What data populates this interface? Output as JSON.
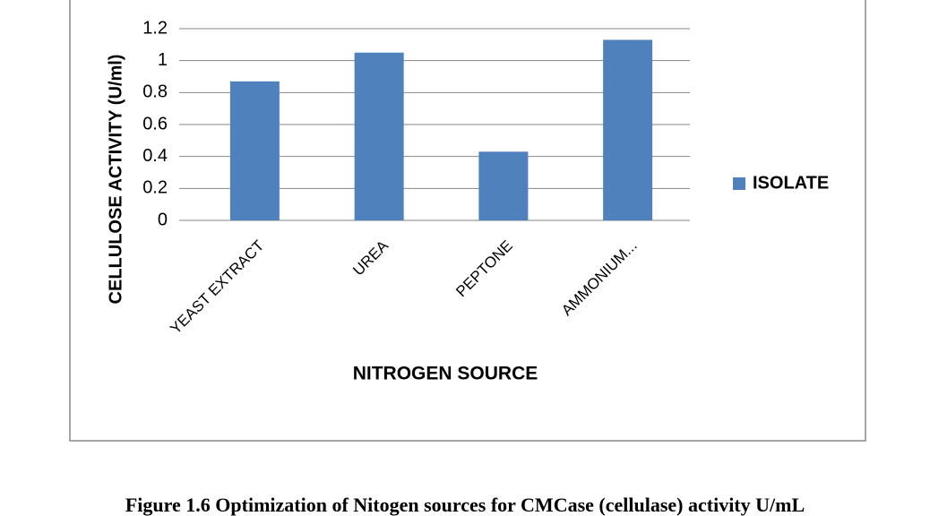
{
  "chart_data": {
    "type": "bar",
    "categories": [
      "YEAST EXTRACT",
      "UREA",
      "PEPTONE",
      "AMMONIUM..."
    ],
    "series": [
      {
        "name": "ISOLATE",
        "color": "#4f81bd",
        "values": [
          0.87,
          1.05,
          0.43,
          1.13
        ]
      }
    ],
    "ylim": [
      0,
      1.2
    ],
    "yticks": [
      0,
      0.2,
      0.4,
      0.6,
      0.8,
      1,
      1.2
    ],
    "grid": true,
    "xlabel": "NITROGEN SOURCE",
    "ylabel": "CELLULOSE ACTIVITY (U/ml)",
    "legend": "right",
    "caption": "Figure 1.6 Optimization  of Nitogen sources for CMCase (cellulase) activity U/mL"
  }
}
